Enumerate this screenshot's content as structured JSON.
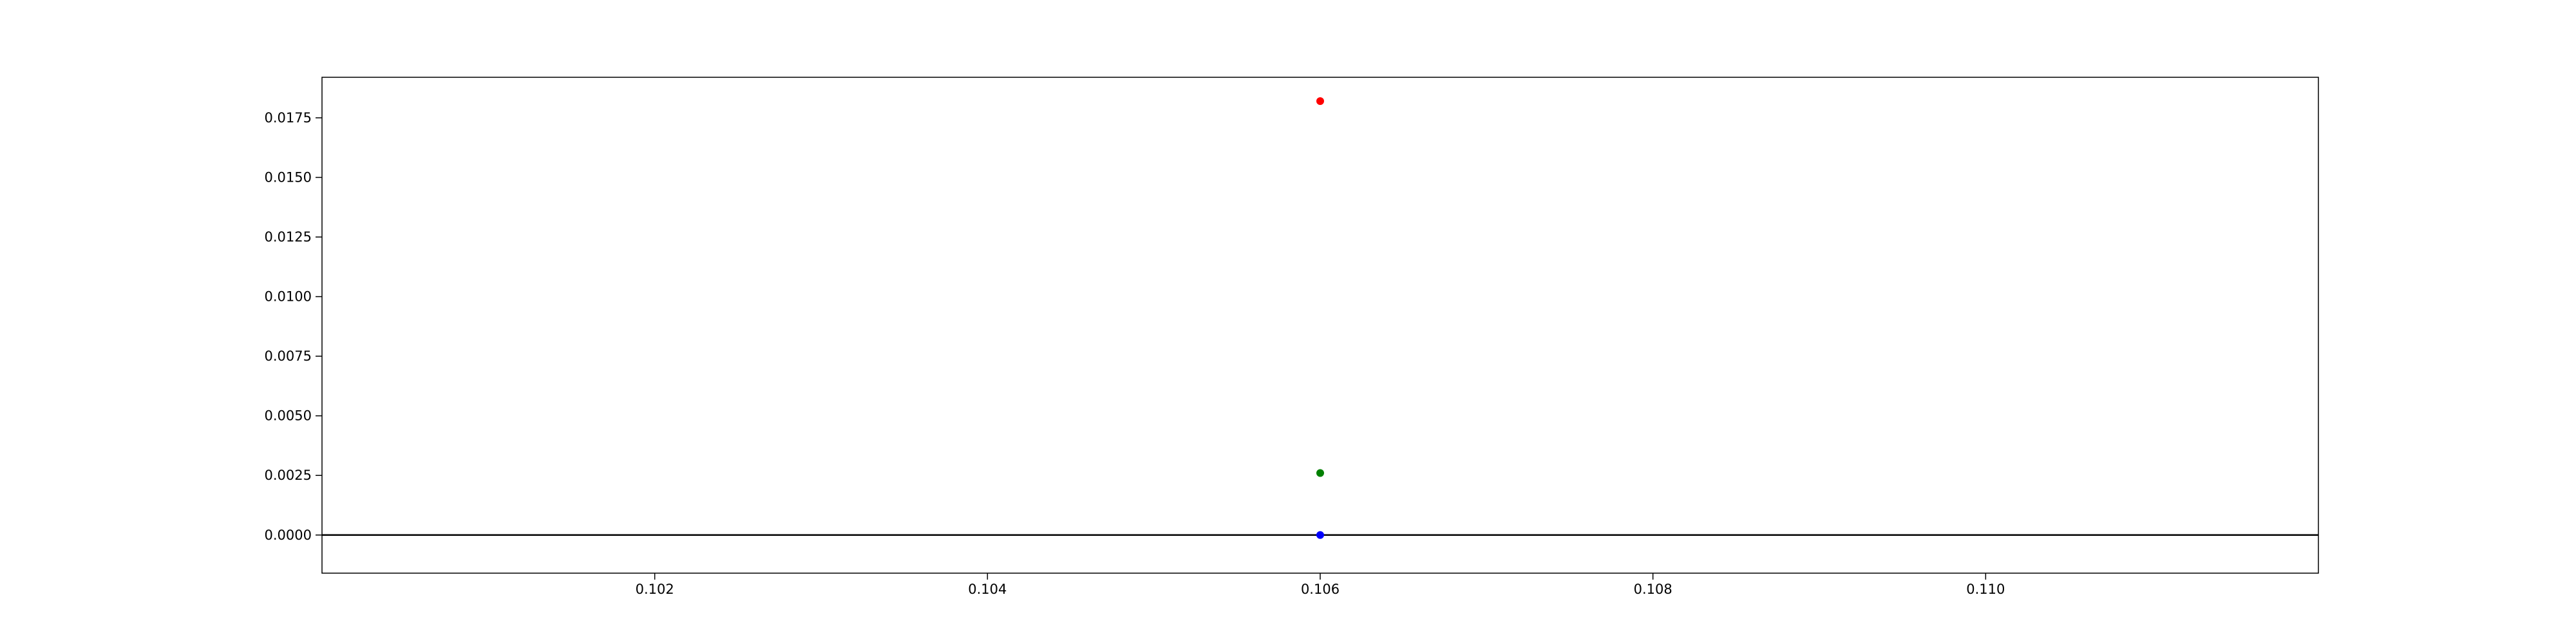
{
  "chart_data": {
    "type": "scatter",
    "title": "",
    "xlabel": "",
    "ylabel": "",
    "xlim": [
      0.1,
      0.112
    ],
    "ylim": [
      -0.0016,
      0.0192
    ],
    "grid": false,
    "x_ticks": [
      {
        "value": 0.102,
        "label": "0.102"
      },
      {
        "value": 0.104,
        "label": "0.104"
      },
      {
        "value": 0.106,
        "label": "0.106"
      },
      {
        "value": 0.108,
        "label": "0.108"
      },
      {
        "value": 0.11,
        "label": "0.110"
      }
    ],
    "y_ticks": [
      {
        "value": 0.0,
        "label": "0.0000"
      },
      {
        "value": 0.0025,
        "label": "0.0025"
      },
      {
        "value": 0.005,
        "label": "0.0050"
      },
      {
        "value": 0.0075,
        "label": "0.0075"
      },
      {
        "value": 0.01,
        "label": "0.0100"
      },
      {
        "value": 0.0125,
        "label": "0.0125"
      },
      {
        "value": 0.015,
        "label": "0.0150"
      },
      {
        "value": 0.0175,
        "label": "0.0175"
      }
    ],
    "hline": {
      "y": 0,
      "color": "#000000"
    },
    "series": [
      {
        "color": "#ff0000",
        "points": [
          {
            "x": 0.106,
            "y": 0.0182
          }
        ]
      },
      {
        "color": "#008000",
        "points": [
          {
            "x": 0.106,
            "y": 0.0026
          }
        ]
      },
      {
        "color": "#0000ff",
        "points": [
          {
            "x": 0.106,
            "y": 0.0
          }
        ]
      }
    ]
  }
}
